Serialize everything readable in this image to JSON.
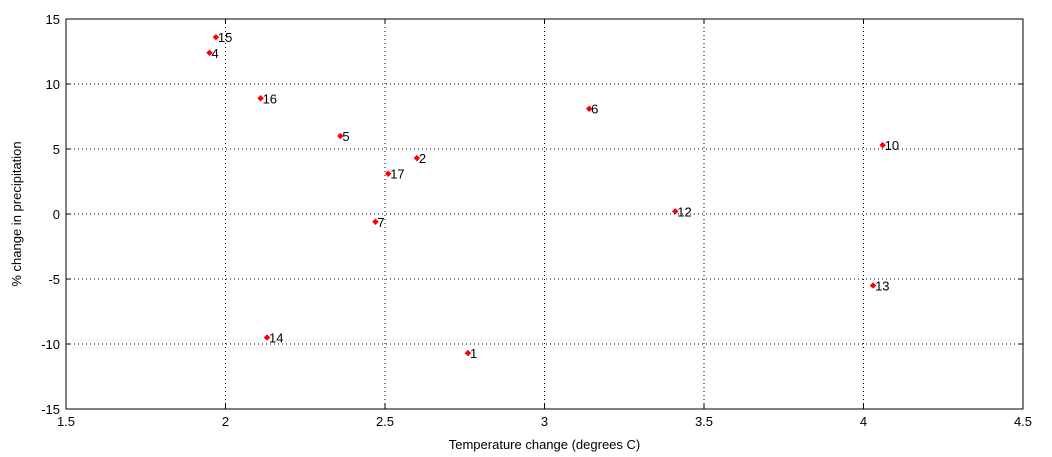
{
  "chart_data": {
    "type": "scatter",
    "title": "",
    "xlabel": "Temperature change (degrees C)",
    "ylabel": "% change in precipitation",
    "xlim": [
      1.5,
      4.5
    ],
    "ylim": [
      -15,
      15
    ],
    "xticks": [
      1.5,
      2,
      2.5,
      3,
      3.5,
      4,
      4.5
    ],
    "yticks": [
      -15,
      -10,
      -5,
      0,
      5,
      10,
      15
    ],
    "xtick_labels": [
      "1.5",
      "2",
      "2.5",
      "3",
      "3.5",
      "4",
      "4.5"
    ],
    "ytick_labels": [
      "-15",
      "-10",
      "-5",
      "0",
      "5",
      "10",
      "15"
    ],
    "grid": "dotted",
    "marker_color": "#ff0000",
    "points": [
      {
        "label": "1",
        "x": 2.76,
        "y": -10.7
      },
      {
        "label": "2",
        "x": 2.6,
        "y": 4.3
      },
      {
        "label": "4",
        "x": 1.95,
        "y": 12.4
      },
      {
        "label": "5",
        "x": 2.36,
        "y": 6.0
      },
      {
        "label": "6",
        "x": 3.14,
        "y": 8.1
      },
      {
        "label": "7",
        "x": 2.47,
        "y": -0.6
      },
      {
        "label": "10",
        "x": 4.06,
        "y": 5.3
      },
      {
        "label": "12",
        "x": 3.41,
        "y": 0.2
      },
      {
        "label": "13",
        "x": 4.03,
        "y": -5.5
      },
      {
        "label": "14",
        "x": 2.13,
        "y": -9.5
      },
      {
        "label": "15",
        "x": 1.97,
        "y": 13.6
      },
      {
        "label": "16",
        "x": 2.11,
        "y": 8.9
      },
      {
        "label": "17",
        "x": 2.51,
        "y": 3.1
      }
    ]
  }
}
